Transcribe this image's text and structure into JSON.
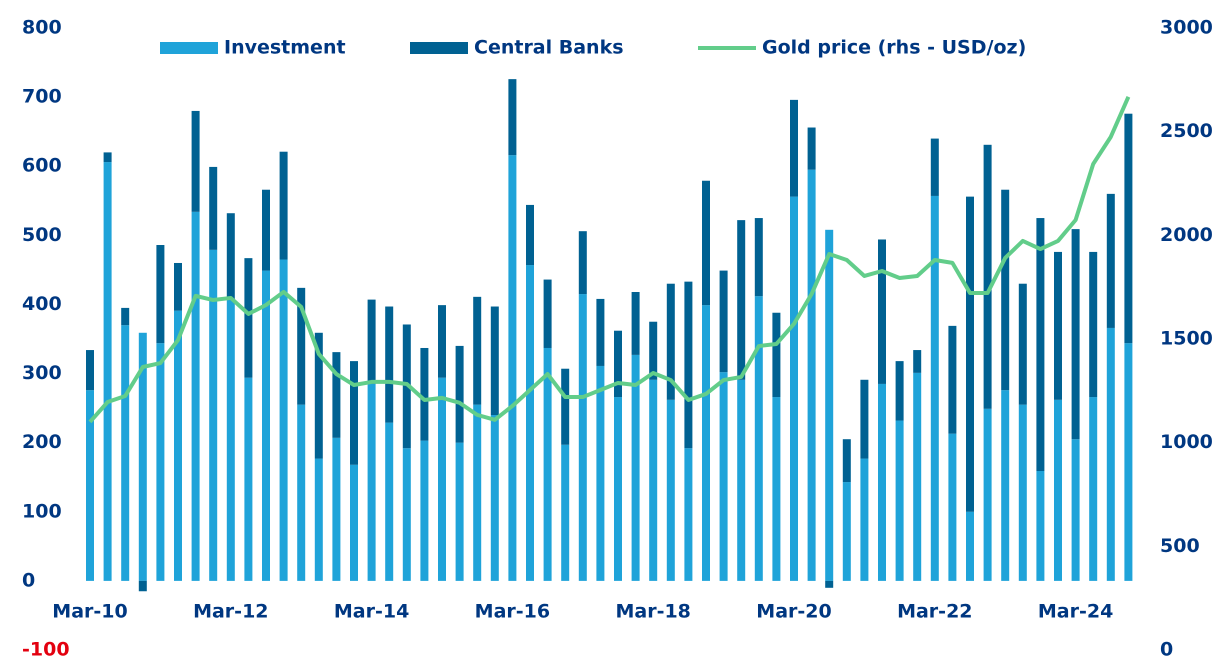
{
  "chart_data": {
    "type": "bar",
    "categories": [
      "Mar-10",
      null,
      null,
      null,
      null,
      null,
      null,
      null,
      "Mar-12",
      null,
      null,
      null,
      null,
      null,
      null,
      null,
      "Mar-14",
      null,
      null,
      null,
      null,
      null,
      null,
      null,
      "Mar-16",
      null,
      null,
      null,
      null,
      null,
      null,
      null,
      "Mar-18",
      null,
      null,
      null,
      null,
      null,
      null,
      null,
      "Mar-20",
      null,
      null,
      null,
      null,
      null,
      null,
      null,
      "Mar-22",
      null,
      null,
      null,
      null,
      null,
      null,
      null,
      "Mar-24",
      null,
      null,
      null
    ],
    "stacked": true,
    "series": [
      {
        "name": "Investment",
        "color": "#1fa3d9",
        "values": [
          276,
          606,
          370,
          359,
          344,
          391,
          534,
          479,
          407,
          294,
          449,
          465,
          255,
          177,
          207,
          168,
          285,
          229,
          192,
          203,
          294,
          200,
          255,
          240,
          616,
          457,
          337,
          197,
          415,
          311,
          266,
          327,
          291,
          262,
          192,
          399,
          302,
          291,
          412,
          266,
          556,
          595,
          508,
          143,
          177,
          285,
          232,
          301,
          557,
          213,
          100,
          249,
          276,
          255,
          159,
          262,
          205,
          266,
          366,
          344
        ]
      },
      {
        "name": "Central Banks",
        "color": "#006192",
        "values": [
          58,
          14,
          25,
          -15,
          142,
          69,
          146,
          120,
          125,
          173,
          117,
          156,
          169,
          182,
          124,
          150,
          122,
          168,
          179,
          134,
          105,
          140,
          156,
          157,
          110,
          87,
          99,
          110,
          91,
          97,
          96,
          91,
          84,
          168,
          241,
          180,
          147,
          231,
          113,
          122,
          140,
          61,
          -10,
          62,
          114,
          209,
          86,
          33,
          83,
          156,
          456,
          382,
          290,
          175,
          366,
          214,
          304,
          210,
          194,
          332
        ]
      },
      {
        "name": "Gold price (rhs - USD/oz)",
        "color": "#62cd8a",
        "type": "line",
        "axis": "y2",
        "values": [
          1100,
          1196,
          1225,
          1365,
          1384,
          1495,
          1708,
          1688,
          1698,
          1621,
          1664,
          1727,
          1655,
          1428,
          1331,
          1278,
          1293,
          1293,
          1283,
          1206,
          1216,
          1192,
          1134,
          1110,
          1177,
          1254,
          1331,
          1220,
          1220,
          1254,
          1288,
          1278,
          1336,
          1302,
          1206,
          1235,
          1302,
          1317,
          1466,
          1476,
          1573,
          1717,
          1910,
          1881,
          1804,
          1828,
          1794,
          1804,
          1881,
          1867,
          1722,
          1722,
          1891,
          1973,
          1934,
          1973,
          2074,
          2344,
          2475,
          2668
        ]
      }
    ],
    "ylim": [
      -100,
      800
    ],
    "yticks": [
      -100,
      0,
      100,
      200,
      300,
      400,
      500,
      600,
      700,
      800
    ],
    "y2lim": [
      0,
      3000
    ],
    "y2ticks": [
      0,
      500,
      1000,
      1500,
      2000,
      2500,
      3000
    ],
    "negative_tick_color": "#e3000f",
    "tick_color": "#003781",
    "grid": false,
    "legend": "top"
  }
}
